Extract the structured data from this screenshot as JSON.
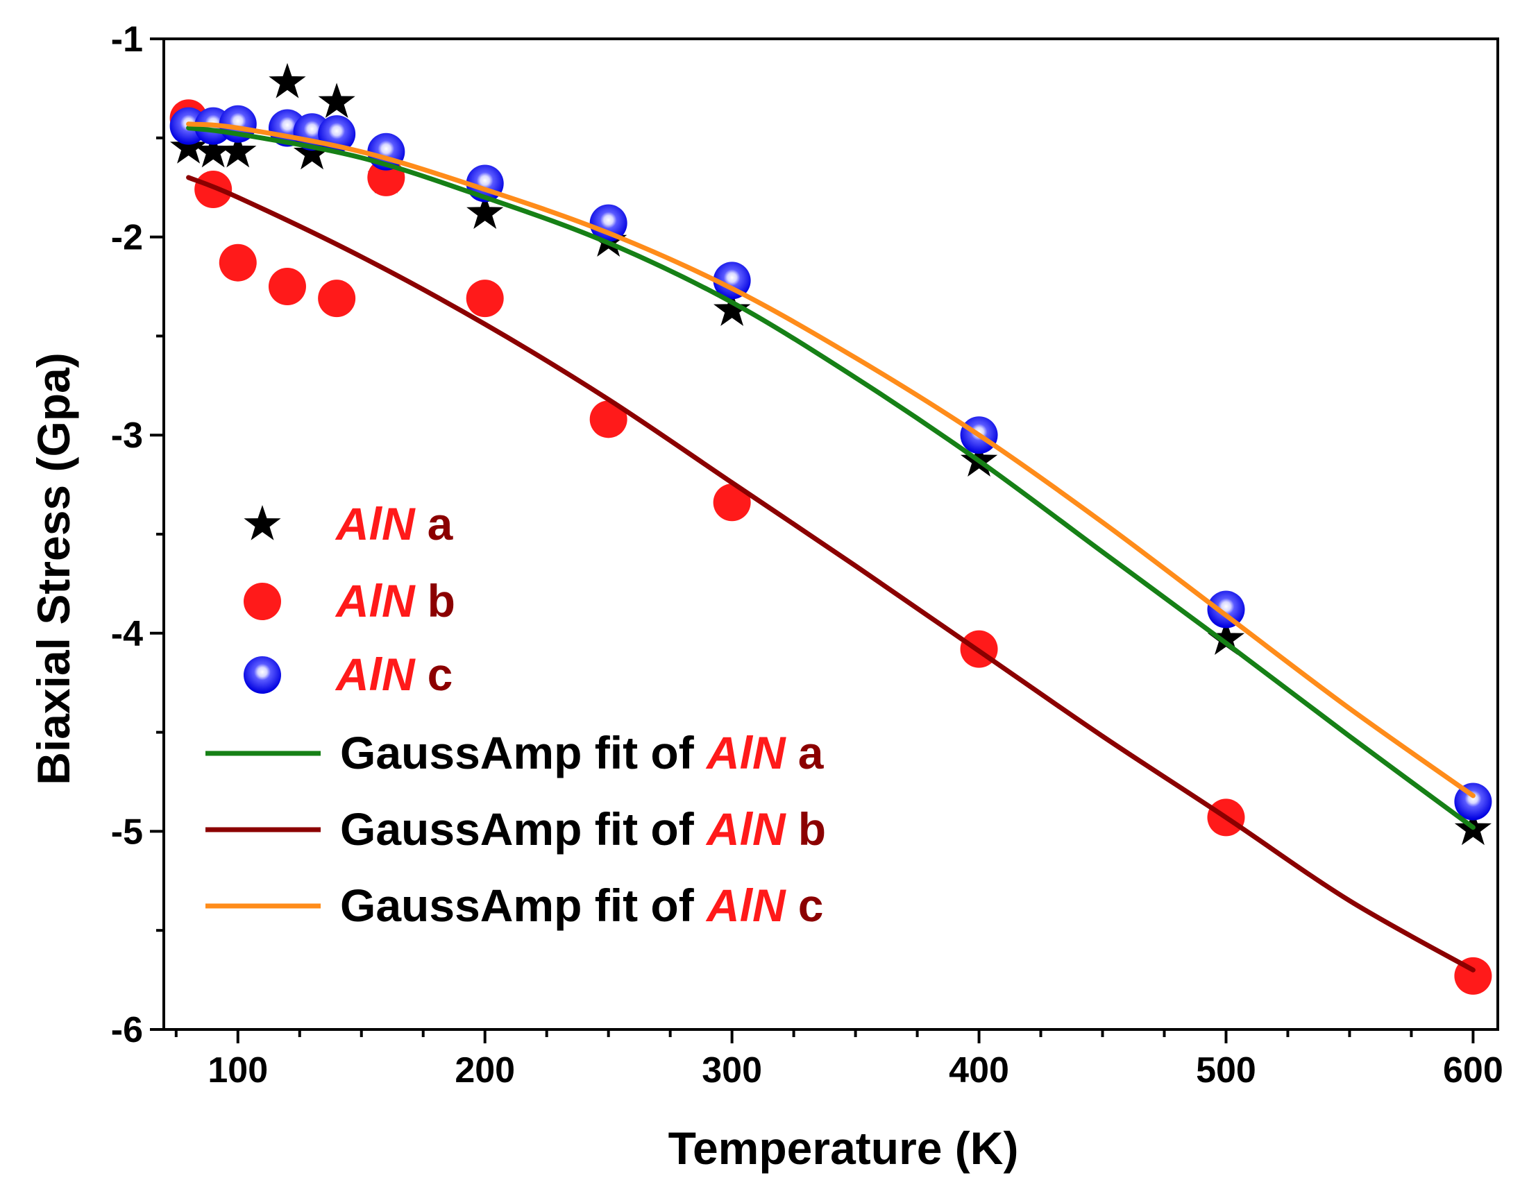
{
  "chart_data": {
    "type": "scatter",
    "title": "",
    "xlabel": "Temperature (K)",
    "ylabel": "Biaxial Stress (Gpa)",
    "xlim": [
      70,
      610
    ],
    "ylim": [
      -6,
      -1
    ],
    "xticks": [
      100,
      200,
      300,
      400,
      500,
      600
    ],
    "yticks": [
      -1,
      -2,
      -3,
      -4,
      -5,
      -6
    ],
    "xtick_labels": [
      "100",
      "200",
      "300",
      "400",
      "500",
      "600"
    ],
    "ytick_labels": [
      "-1",
      "-2",
      "-3",
      "-4",
      "-5",
      "-6"
    ],
    "legend_position": "bottom-left",
    "series": [
      {
        "name": "AlN a",
        "marker": "star",
        "color": "#000000",
        "x": [
          80,
          90,
          100,
          120,
          130,
          140,
          160,
          200,
          250,
          300,
          400,
          500,
          600
        ],
        "y": [
          -1.55,
          -1.57,
          -1.57,
          -1.22,
          -1.58,
          -1.32,
          -1.7,
          -1.88,
          -2.02,
          -2.37,
          -3.13,
          -4.03,
          -4.99
        ]
      },
      {
        "name": "AlN b",
        "marker": "circle",
        "color": "#ff1a1a",
        "x": [
          80,
          90,
          100,
          120,
          140,
          160,
          200,
          250,
          300,
          400,
          500,
          600
        ],
        "y": [
          -1.4,
          -1.76,
          -2.13,
          -2.25,
          -2.31,
          -1.7,
          -2.31,
          -2.92,
          -3.34,
          -4.08,
          -4.93,
          -5.73
        ]
      },
      {
        "name": "AlN c",
        "marker": "sphere",
        "color": "#1a1aff",
        "x": [
          80,
          90,
          100,
          120,
          130,
          140,
          160,
          200,
          250,
          300,
          400,
          500,
          600
        ],
        "y": [
          -1.44,
          -1.44,
          -1.43,
          -1.45,
          -1.47,
          -1.48,
          -1.57,
          -1.73,
          -1.93,
          -2.22,
          -3.0,
          -3.88,
          -4.85
        ]
      }
    ],
    "fits": [
      {
        "name": "GaussAmp fit of AlN a",
        "color": "#168016",
        "x": [
          80,
          100,
          150,
          200,
          250,
          300,
          350,
          400,
          450,
          500,
          550,
          600
        ],
        "y": [
          -1.45,
          -1.48,
          -1.6,
          -1.8,
          -2.03,
          -2.33,
          -2.71,
          -3.13,
          -3.59,
          -4.05,
          -4.52,
          -4.98
        ]
      },
      {
        "name": "GaussAmp fit of AlN b",
        "color": "#8b0000",
        "x": [
          80,
          100,
          150,
          200,
          250,
          300,
          350,
          400,
          450,
          500,
          550,
          600
        ],
        "y": [
          -1.7,
          -1.8,
          -2.1,
          -2.44,
          -2.82,
          -3.24,
          -3.66,
          -4.09,
          -4.52,
          -4.93,
          -5.35,
          -5.7
        ]
      },
      {
        "name": "GaussAmp fit of AlN c",
        "color": "#ff8c1a",
        "x": [
          80,
          100,
          150,
          200,
          250,
          300,
          350,
          400,
          450,
          500,
          550,
          600
        ],
        "y": [
          -1.43,
          -1.45,
          -1.57,
          -1.76,
          -1.98,
          -2.26,
          -2.61,
          -3.0,
          -3.44,
          -3.91,
          -4.38,
          -4.82
        ]
      }
    ]
  },
  "legend": {
    "items": [
      {
        "kind": "marker",
        "marker": "star",
        "color": "#000000",
        "prefix": "",
        "material": "AlN",
        "suffix": "a"
      },
      {
        "kind": "marker",
        "marker": "circle",
        "color": "#ff1a1a",
        "prefix": "",
        "material": "AlN",
        "suffix": "b"
      },
      {
        "kind": "marker",
        "marker": "sphere",
        "color": "#1a1aff",
        "prefix": "",
        "material": "AlN",
        "suffix": "c"
      },
      {
        "kind": "line",
        "color": "#168016",
        "prefix": "GaussAmp fit of",
        "material": "AlN",
        "suffix": "a"
      },
      {
        "kind": "line",
        "color": "#8b0000",
        "prefix": "GaussAmp fit of",
        "material": "AlN",
        "suffix": "b"
      },
      {
        "kind": "line",
        "color": "#ff8c1a",
        "prefix": "GaussAmp fit of",
        "material": "AlN",
        "suffix": "c"
      }
    ],
    "material_color": "#ff1a1a",
    "suffix_color": "#8b0000",
    "prefix_color": "#000000"
  }
}
